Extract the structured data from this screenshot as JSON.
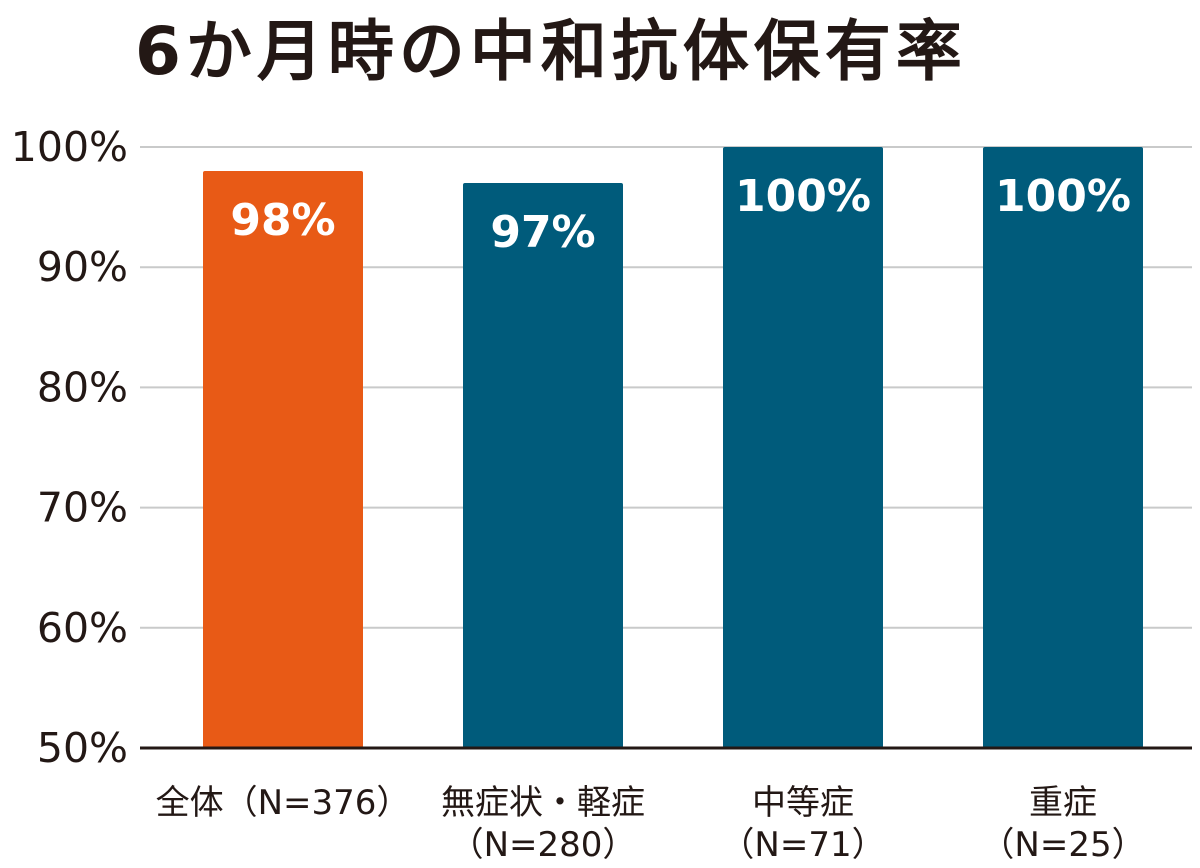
{
  "chart_data": {
    "type": "bar",
    "title": "6か月時の中和抗体保有率",
    "categories": [
      [
        "全体（N=376）"
      ],
      [
        "無症状・軽症",
        "（N=280）"
      ],
      [
        "中等症",
        "（N=71）"
      ],
      [
        "重症",
        "（N=25）"
      ]
    ],
    "values": [
      98,
      97,
      100,
      100
    ],
    "data_labels": [
      "98%",
      "97%",
      "100%",
      "100%"
    ],
    "colors": [
      "#E85A16",
      "#005B7B",
      "#005B7B",
      "#005B7B"
    ],
    "ylim": [
      50,
      100
    ],
    "yticks": [
      50,
      60,
      70,
      80,
      90,
      100
    ],
    "ytick_labels": [
      "50%",
      "60%",
      "70%",
      "80%",
      "90%",
      "100%"
    ],
    "ylabel": "",
    "xlabel": "",
    "grid": true,
    "gridline_color": "#C9CACA",
    "axis_color": "#231815"
  }
}
